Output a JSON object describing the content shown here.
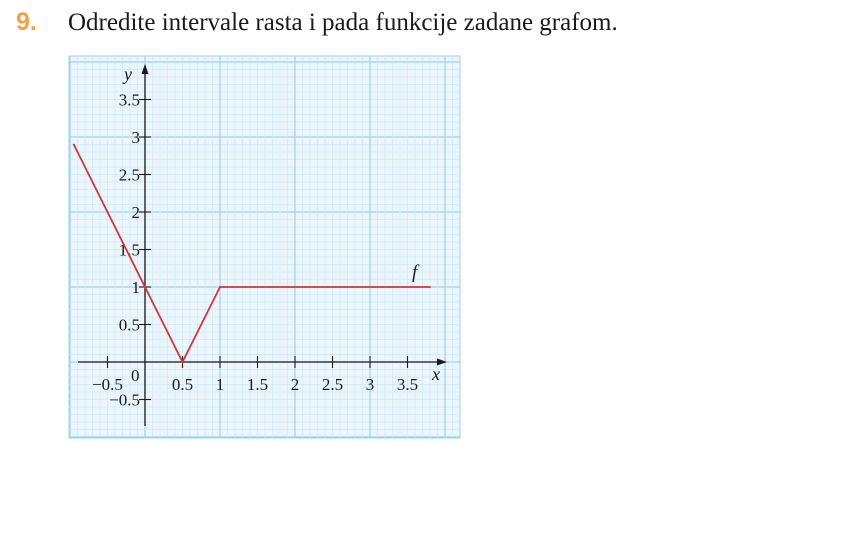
{
  "task": {
    "number": "9.",
    "text": "Odredite intervale rasta i pada funkcije zadane grafom."
  },
  "colors": {
    "task_number": "#f0a04b",
    "grid_major": "#9fd3ea",
    "grid_minor": "#cfe9f5",
    "grid_background": "#eaf6fc",
    "axis": "#1a1a1a",
    "curve": "#d1343b"
  },
  "chart_data": {
    "type": "line",
    "xlabel": "x",
    "ylabel": "y",
    "xlim": [
      -1,
      4.2
    ],
    "ylim": [
      -0.85,
      4.2
    ],
    "origin_label": "0",
    "x_ticks": [
      {
        "value": -0.5,
        "label": "−0.5"
      },
      {
        "value": 0.5,
        "label": "0.5"
      },
      {
        "value": 1,
        "label": "1"
      },
      {
        "value": 1.5,
        "label": "1.5"
      },
      {
        "value": 2,
        "label": "2"
      },
      {
        "value": 2.5,
        "label": "2.5"
      },
      {
        "value": 3,
        "label": "3"
      },
      {
        "value": 3.5,
        "label": "3.5"
      }
    ],
    "y_ticks": [
      {
        "value": -0.5,
        "label": "−0.5"
      },
      {
        "value": 0.5,
        "label": "0.5"
      },
      {
        "value": 1,
        "label": "1"
      },
      {
        "value": 1.5,
        "label": "1.5"
      },
      {
        "value": 2,
        "label": "2"
      },
      {
        "value": 2.5,
        "label": "2.5"
      },
      {
        "value": 3,
        "label": "3"
      },
      {
        "value": 3.5,
        "label": "3.5"
      }
    ],
    "grid": true,
    "series": [
      {
        "name": "f",
        "points": [
          {
            "x": -0.95,
            "y": 2.9
          },
          {
            "x": 0,
            "y": 1
          },
          {
            "x": 0.5,
            "y": 0
          },
          {
            "x": 1,
            "y": 1
          },
          {
            "x": 3.8,
            "y": 1
          }
        ]
      }
    ]
  }
}
